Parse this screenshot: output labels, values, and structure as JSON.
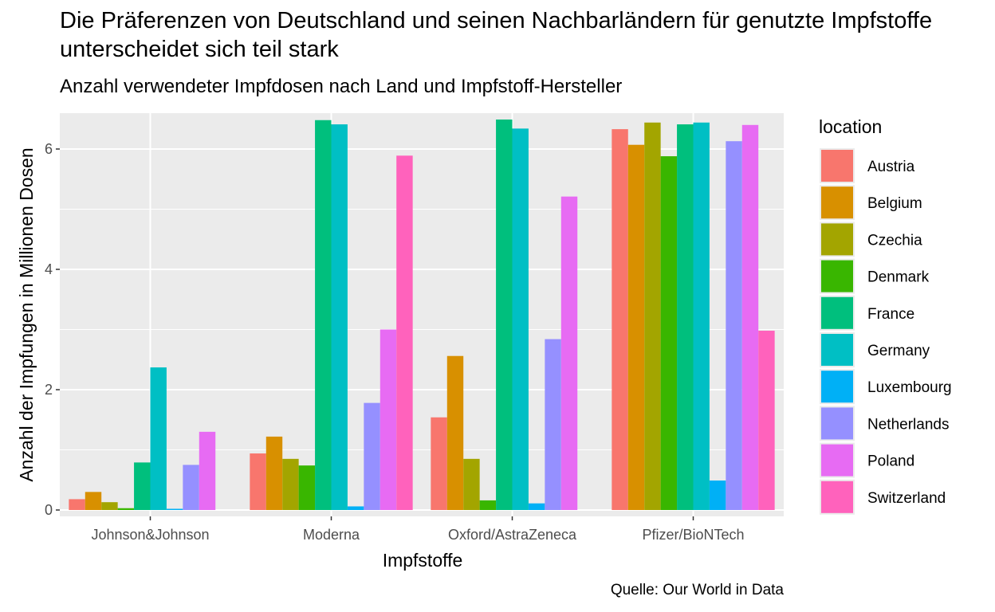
{
  "title": "Die Präferenzen von Deutschland und seinen Nachbarländern für genutzte Impfstoffe unterscheidet sich teil stark",
  "subtitle": "Anzahl verwendeter Impfdosen nach Land und Impfstoff-Hersteller",
  "caption": "Quelle: Our World in Data",
  "chart_data": {
    "type": "bar",
    "title": "Die Präferenzen von Deutschland und seinen Nachbarländern für genutzte Impfstoffe unterscheidet sich teil stark",
    "xlabel": "Impfstoffe",
    "ylabel": "Anzahl der Impfungen in Millionen Dosen",
    "ylim": [
      0,
      6.6
    ],
    "yticks": [
      0,
      2,
      4,
      6
    ],
    "grid": true,
    "legend_title": "location",
    "legend_position": "right",
    "categories": [
      "Johnson&Johnson",
      "Moderna",
      "Oxford/AstraZeneca",
      "Pfizer/BioNTech"
    ],
    "series": [
      {
        "name": "Austria",
        "color": "#F8766D",
        "values": [
          0.18,
          0.94,
          1.54,
          6.33
        ]
      },
      {
        "name": "Belgium",
        "color": "#D89000",
        "values": [
          0.3,
          1.22,
          2.56,
          6.07
        ]
      },
      {
        "name": "Czechia",
        "color": "#A3A500",
        "values": [
          0.13,
          0.85,
          0.85,
          6.44
        ]
      },
      {
        "name": "Denmark",
        "color": "#39B600",
        "values": [
          0.03,
          0.74,
          0.16,
          5.88
        ]
      },
      {
        "name": "France",
        "color": "#00BF7D",
        "values": [
          0.79,
          6.48,
          6.49,
          6.41
        ]
      },
      {
        "name": "Germany",
        "color": "#00BFC4",
        "values": [
          2.37,
          6.41,
          6.34,
          6.44
        ]
      },
      {
        "name": "Luxembourg",
        "color": "#00B0F6",
        "values": [
          0.02,
          0.06,
          0.11,
          0.49
        ]
      },
      {
        "name": "Netherlands",
        "color": "#9590FF",
        "values": [
          0.75,
          1.78,
          2.84,
          6.13
        ]
      },
      {
        "name": "Poland",
        "color": "#E76BF3",
        "values": [
          1.3,
          3.0,
          5.21,
          6.4
        ]
      },
      {
        "name": "Switzerland",
        "color": "#FF62BC",
        "values": [
          0,
          5.89,
          0,
          2.98
        ]
      }
    ]
  }
}
